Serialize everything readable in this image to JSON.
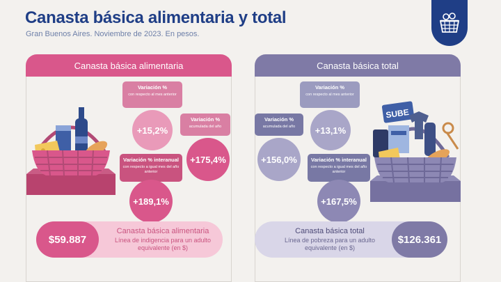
{
  "header": {
    "title": "Canasta básica alimentaria y total",
    "subtitle": "Gran Buenos Aires. Noviembre de 2023. En pesos."
  },
  "logo": {
    "icon": "shopping-basket-icon",
    "color": "#1f3e86"
  },
  "cba": {
    "header": "Canasta básica alimentaria",
    "monthly": {
      "title": "Variación %",
      "sub": "con respecto al mes anterior",
      "value": "+15,2%"
    },
    "accumulated": {
      "title": "Variación %",
      "sub": "acumulada del año",
      "value": "+175,4%"
    },
    "interannual": {
      "title": "Variación % interanual",
      "sub": "con respecto a igual mes del año anterior",
      "value": "+189,1%"
    },
    "price": "$59.887",
    "pill_title": "Canasta básica alimentaria",
    "pill_sub": "Línea de indigencia para un adulto equivalente (en $)",
    "color": "#d9578b"
  },
  "cbt": {
    "header": "Canasta básica total",
    "monthly": {
      "title": "Variación %",
      "sub": "con respecto al mes anterior",
      "value": "+13,1%"
    },
    "accumulated": {
      "title": "Variación %",
      "sub": "acumulada del año",
      "value": "+156,0%"
    },
    "interannual": {
      "title": "Variación % interanual",
      "sub": "con respecto a igual mes del año anterior",
      "value": "+167,5%"
    },
    "price": "$126.361",
    "pill_title": "Canasta básica total",
    "pill_sub": "Línea de pobreza para un adulto equivalente (en $)",
    "color": "#7f7aa6"
  }
}
